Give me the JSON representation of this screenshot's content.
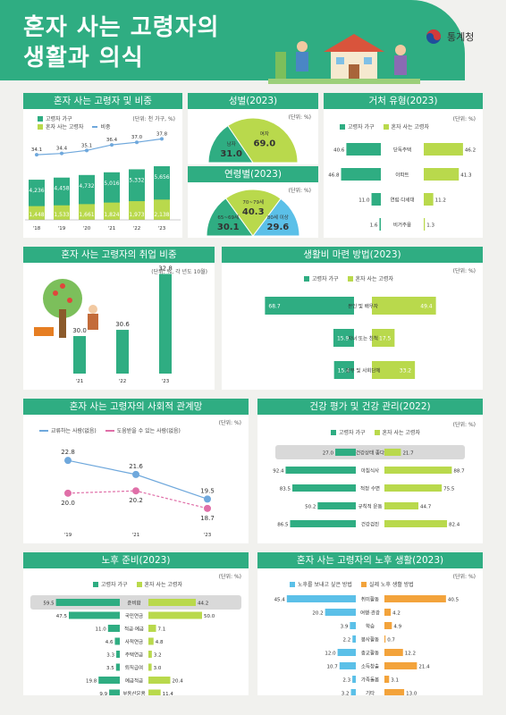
{
  "header": {
    "title_line1": "혼자 사는 고령자의",
    "title_line2": "생활과 의식",
    "logo": "통계청"
  },
  "colors": {
    "green": "#2fad82",
    "lime": "#b9d94c",
    "blue": "#6fa8dc",
    "pink": "#e06fa8",
    "orange": "#f3a33b",
    "sky": "#5bc0e8",
    "grey": "#d9d9d9"
  },
  "p1": {
    "title": "혼자 사는 고령자 및 비중",
    "unit": "(단위: 천 가구, %)",
    "legend": [
      "고령자 가구",
      "혼자 사는 고령자",
      "비중"
    ]
  },
  "p2": {
    "title": "성별(2023)",
    "unit": "(단위: %)"
  },
  "p2b": {
    "title": "연령별(2023)",
    "unit": "(단위: %)"
  },
  "p3": {
    "title": "거처 유형(2023)",
    "unit": "(단위: %)",
    "legend": [
      "고령자 가구",
      "혼자 사는 고령자"
    ]
  },
  "p4": {
    "title": "혼자 사는 고령자의 취업 비중",
    "unit": "(단위: %, 각 년도 10월)"
  },
  "p5": {
    "title": "생활비 마련 방법(2023)",
    "unit": "(단위: %)",
    "legend": [
      "고령자 가구",
      "혼자 사는 고령자"
    ]
  },
  "p6": {
    "title": "혼자 사는 고령자의 사회적 관계망",
    "unit": "(단위: %)",
    "legend": [
      "교류하는 사람(없음)",
      "도움받을 수 있는 사람(없음)"
    ]
  },
  "p7": {
    "title": "건강 평가 및 건강 관리(2022)",
    "unit": "(단위: %)",
    "legend": [
      "고령자 가구",
      "혼자 사는 고령자"
    ]
  },
  "p8": {
    "title": "노후 준비(2023)",
    "unit": "(단위: %)",
    "legend": [
      "고령자 가구",
      "혼자 사는 고령자"
    ]
  },
  "p9": {
    "title": "혼자 사는 고령자의 노후 생활(2023)",
    "unit": "(단위: %)",
    "legend": [
      "노후를 보내고 싶은 방법",
      "실제 노후 생활 방법"
    ]
  },
  "chart_data": [
    {
      "type": "bar",
      "title": "혼자 사는 고령자 및 비중",
      "categories": [
        "'18",
        "'19",
        "'20",
        "'21",
        "'22",
        "'23"
      ],
      "series": [
        {
          "name": "고령자 가구",
          "values": [
            4236,
            4458,
            4732,
            5016,
            5332,
            5656
          ]
        },
        {
          "name": "혼자 사는 고령자",
          "values": [
            1448,
            1533,
            1661,
            1824,
            1973,
            2138
          ]
        },
        {
          "name": "비중",
          "values": [
            34.1,
            34.4,
            35.1,
            36.4,
            37.0,
            37.8
          ]
        }
      ]
    },
    {
      "type": "pie",
      "title": "성별(2023)",
      "categories": [
        "남자",
        "여자"
      ],
      "values": [
        31.0,
        69.0
      ]
    },
    {
      "type": "pie",
      "title": "연령별(2023)",
      "categories": [
        "65~69세",
        "70~79세",
        "80세 이상"
      ],
      "values": [
        30.1,
        40.3,
        29.6
      ]
    },
    {
      "type": "bar",
      "title": "거처 유형(2023)",
      "categories": [
        "단독주택",
        "아파트",
        "연립·다세대",
        "비거주용"
      ],
      "series": [
        {
          "name": "고령자 가구",
          "values": [
            40.6,
            46.8,
            11.0,
            1.6
          ]
        },
        {
          "name": "혼자 사는 고령자",
          "values": [
            46.2,
            41.3,
            11.2,
            1.3
          ]
        }
      ]
    },
    {
      "type": "bar",
      "title": "혼자 사는 고령자의 취업 비중",
      "categories": [
        "'21",
        "'22",
        "'23"
      ],
      "values": [
        30.0,
        30.6,
        32.8
      ]
    },
    {
      "type": "bar",
      "title": "생활비 마련 방법(2023)",
      "categories": [
        "본인 및 배우자",
        "자녀 또는 친척",
        "정부 및 사회단체"
      ],
      "series": [
        {
          "name": "고령자 가구",
          "values": [
            68.7,
            15.9,
            15.4
          ]
        },
        {
          "name": "혼자 사는 고령자",
          "values": [
            49.4,
            17.5,
            33.2
          ]
        }
      ]
    },
    {
      "type": "line",
      "title": "혼자 사는 고령자의 사회적 관계망",
      "x": [
        "'19",
        "'21",
        "'23"
      ],
      "series": [
        {
          "name": "교류하는 사람(없음)",
          "values": [
            22.8,
            21.6,
            19.5
          ]
        },
        {
          "name": "도움받을 수 있는 사람(없음)",
          "values": [
            20.0,
            20.2,
            18.7
          ]
        }
      ]
    },
    {
      "type": "bar",
      "title": "건강 평가 및 건강 관리(2022)",
      "categories": [
        "건강상태 좋다",
        "아침식사",
        "적정 수면",
        "규칙적 운동",
        "건강검진"
      ],
      "series": [
        {
          "name": "고령자 가구",
          "values": [
            27.0,
            92.4,
            83.5,
            50.2,
            86.5
          ]
        },
        {
          "name": "혼자 사는 고령자",
          "values": [
            21.7,
            88.7,
            75.5,
            44.7,
            82.4
          ]
        }
      ]
    },
    {
      "type": "bar",
      "title": "노후 준비(2023)",
      "categories": [
        "준비함",
        "국민연금",
        "적금·예금",
        "사적연금",
        "주택연금",
        "퇴직급여",
        "예금적금",
        "부동산운용"
      ],
      "series": [
        {
          "name": "고령자 가구",
          "values": [
            59.5,
            47.5,
            11.0,
            4.6,
            3.3,
            3.5,
            19.8,
            9.9
          ]
        },
        {
          "name": "혼자 사는 고령자",
          "values": [
            44.2,
            50.0,
            7.1,
            4.8,
            3.2,
            3.0,
            20.4,
            11.4
          ]
        }
      ]
    },
    {
      "type": "bar",
      "title": "혼자 사는 고령자의 노후 생활(2023)",
      "categories": [
        "취미활동",
        "여행·관광",
        "학습",
        "봉사활동",
        "종교활동",
        "소득창출",
        "가족돌봄",
        "기타"
      ],
      "series": [
        {
          "name": "노후를 보내고 싶은 방법",
          "values": [
            45.4,
            20.2,
            3.9,
            2.2,
            12.0,
            10.7,
            2.3,
            3.2
          ]
        },
        {
          "name": "실제 노후 생활 방법",
          "values": [
            40.5,
            4.2,
            4.9,
            0.7,
            12.2,
            21.4,
            3.1,
            13.0
          ]
        }
      ]
    }
  ]
}
